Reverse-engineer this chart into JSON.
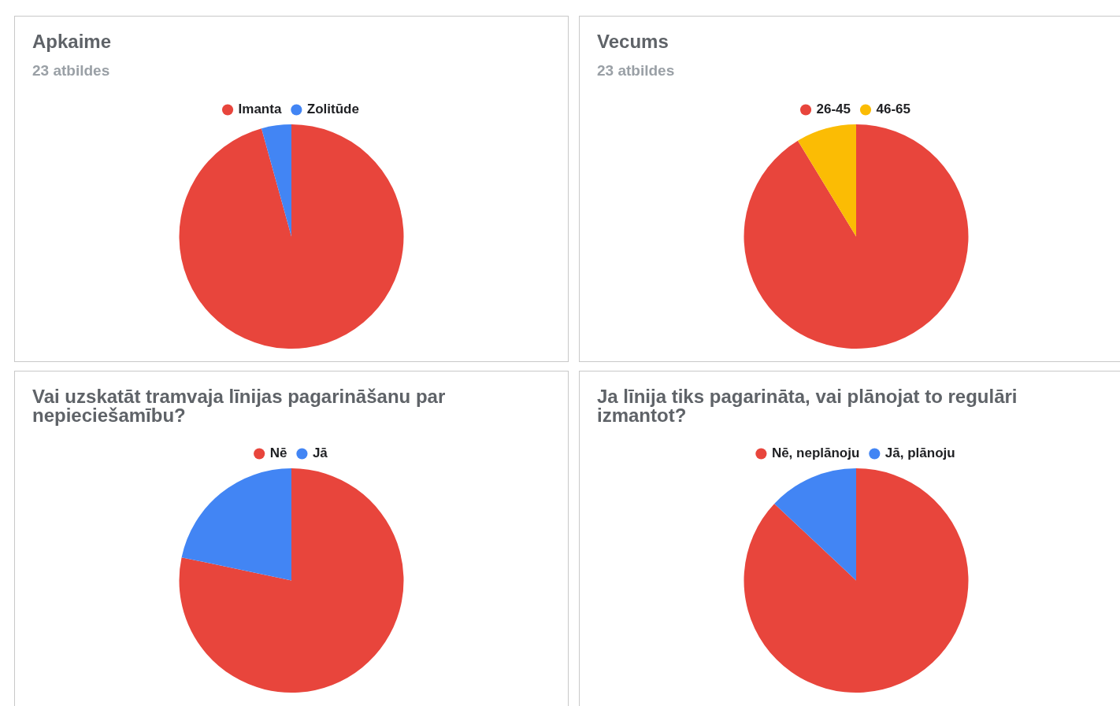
{
  "chart_data": [
    {
      "type": "pie",
      "title": "Apkaime",
      "subtitle": "23 atbildes",
      "categories": [
        "Imanta",
        "Zolitūde"
      ],
      "values": [
        95.7,
        4.3
      ],
      "colors": [
        "#e8453c",
        "#4285f4"
      ],
      "legend": "top"
    },
    {
      "type": "pie",
      "title": "Vecums",
      "subtitle": "23 atbildes",
      "categories": [
        "26-45",
        "46-65"
      ],
      "values": [
        91.3,
        8.7
      ],
      "colors": [
        "#e8453c",
        "#fbbc04"
      ],
      "legend": "top"
    },
    {
      "type": "pie",
      "title": "Vai uzskatāt tramvaja līnijas pagarināšanu par nepieciešamību?",
      "categories": [
        "Nē",
        "Jā"
      ],
      "values": [
        78.3,
        21.7
      ],
      "colors": [
        "#e8453c",
        "#4285f4"
      ],
      "legend": "top"
    },
    {
      "type": "pie",
      "title": "Ja līnija tiks pagarināta, vai plānojat to regulāri izmantot?",
      "categories": [
        "Nē, neplānoju",
        "Jā, plānoju"
      ],
      "values": [
        87,
        13
      ],
      "colors": [
        "#e8453c",
        "#4285f4"
      ],
      "legend": "top"
    }
  ]
}
